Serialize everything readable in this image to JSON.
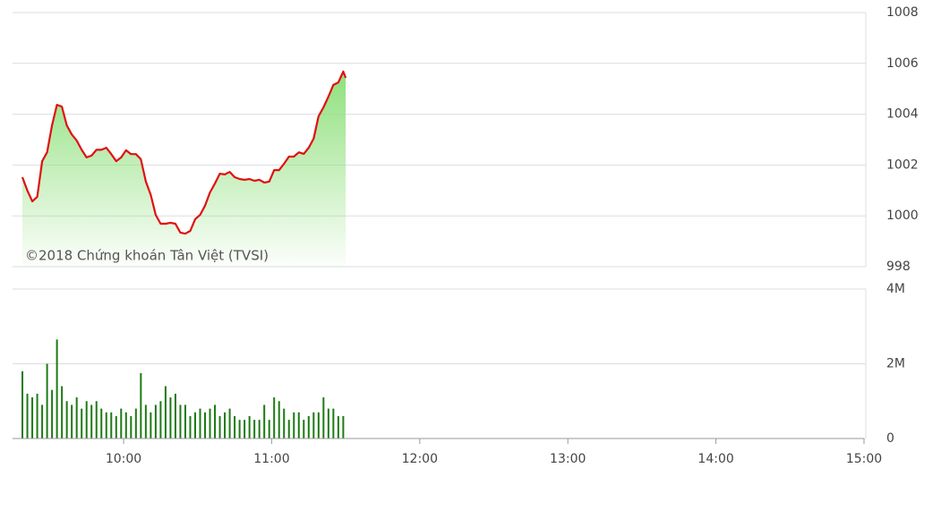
{
  "chart_data": [
    {
      "type": "line",
      "annotation": "©2018 Chứng khoán Tân Việt (TVSI)",
      "color": "#e01010",
      "fill_color": "#8fe07c",
      "x": [
        559,
        561,
        563,
        565,
        567,
        569,
        571,
        573,
        575,
        577,
        579,
        581,
        583,
        585,
        587,
        589,
        591,
        593,
        595,
        597,
        599,
        601,
        603,
        605,
        607,
        609,
        611,
        613,
        615,
        617,
        619,
        621,
        623,
        625,
        627,
        629,
        631,
        633,
        635,
        637,
        639,
        641,
        643,
        645,
        647,
        649,
        651,
        653,
        655,
        657,
        659,
        661,
        663,
        665,
        667,
        669,
        671,
        673,
        675,
        677,
        679,
        681,
        683,
        685,
        687,
        689,
        690
      ],
      "values": [
        1001.52,
        1001.0,
        1000.57,
        1000.75,
        1002.15,
        1002.5,
        1003.56,
        1004.37,
        1004.3,
        1003.56,
        1003.2,
        1002.96,
        1002.6,
        1002.3,
        1002.37,
        1002.6,
        1002.6,
        1002.68,
        1002.43,
        1002.15,
        1002.3,
        1002.58,
        1002.43,
        1002.43,
        1002.23,
        1001.35,
        1000.82,
        1000.04,
        999.69,
        999.69,
        999.73,
        999.69,
        999.34,
        999.3,
        999.41,
        999.87,
        1000.04,
        1000.4,
        1000.92,
        1001.27,
        1001.66,
        1001.63,
        1001.73,
        1001.52,
        1001.45,
        1001.42,
        1001.45,
        1001.38,
        1001.42,
        1001.31,
        1001.35,
        1001.8,
        1001.8,
        1002.05,
        1002.33,
        1002.33,
        1002.5,
        1002.44,
        1002.68,
        1003.04,
        1003.92,
        1004.27,
        1004.69,
        1005.15,
        1005.25,
        1005.68,
        1005.43
      ],
      "xlim": [
        555,
        900
      ],
      "ylim": [
        998,
        1008
      ],
      "yticks": [
        998,
        1000,
        1002,
        1004,
        1006,
        1008
      ],
      "grid": true
    },
    {
      "type": "bar",
      "color": "#1d7a14",
      "x": [
        559,
        561,
        563,
        565,
        567,
        569,
        571,
        573,
        575,
        577,
        579,
        581,
        583,
        585,
        587,
        589,
        591,
        593,
        595,
        597,
        599,
        601,
        603,
        605,
        607,
        609,
        611,
        613,
        615,
        617,
        619,
        621,
        623,
        625,
        627,
        629,
        631,
        633,
        635,
        637,
        639,
        641,
        643,
        645,
        647,
        649,
        651,
        653,
        655,
        657,
        659,
        661,
        663,
        665,
        667,
        669,
        671,
        673,
        675,
        677,
        679,
        681,
        683,
        685,
        687,
        689
      ],
      "values": [
        1800000,
        1200000,
        1100000,
        1200000,
        900000,
        2000000,
        1300000,
        2650000,
        1400000,
        1000000,
        900000,
        1100000,
        800000,
        1000000,
        900000,
        1000000,
        800000,
        700000,
        700000,
        600000,
        800000,
        700000,
        600000,
        800000,
        1750000,
        900000,
        700000,
        900000,
        1000000,
        1400000,
        1100000,
        1200000,
        900000,
        900000,
        600000,
        700000,
        800000,
        700000,
        800000,
        900000,
        600000,
        700000,
        800000,
        600000,
        500000,
        500000,
        600000,
        500000,
        500000,
        900000,
        500000,
        1100000,
        1000000,
        800000,
        500000,
        700000,
        700000,
        500000,
        600000,
        700000,
        700000,
        1100000,
        800000,
        800000,
        600000,
        600000
      ],
      "xlim": [
        555,
        900
      ],
      "ylim": [
        0,
        4000000
      ],
      "yticks": [
        0,
        {
          "value": 2000000,
          "label": "2M"
        },
        {
          "value": 4000000,
          "label": "4M"
        }
      ],
      "xticks": [
        {
          "value": 600,
          "label": "10:00"
        },
        {
          "value": 660,
          "label": "11:00"
        },
        {
          "value": 720,
          "label": "12:00"
        },
        {
          "value": 780,
          "label": "13:00"
        },
        {
          "value": 840,
          "label": "14:00"
        },
        {
          "value": 900,
          "label": "15:00"
        }
      ],
      "grid": true
    }
  ]
}
